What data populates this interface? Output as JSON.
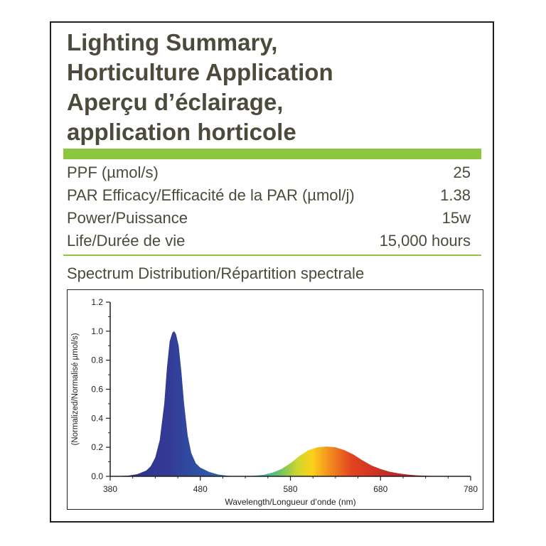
{
  "title": {
    "lines": [
      "Lighting Summary,",
      "Horticulture Application",
      "Aperçu d’éclairage,",
      "application horticole"
    ]
  },
  "colors": {
    "accent_green": "#8dc63f",
    "text": "#4c4a3b"
  },
  "specs": [
    {
      "label": "PPF (µmol/s)",
      "value": "25"
    },
    {
      "label": "PAR Efficacy/Efficacité de la PAR (µmol/j)",
      "value": "1.38"
    },
    {
      "label": "Power/Puissance",
      "value": "15w"
    },
    {
      "label": "Life/Durée de vie",
      "value": "15,000 hours"
    }
  ],
  "spectrum_title": "Spectrum Distribution/Répartition spectrale",
  "chart_data": {
    "type": "area",
    "title": "",
    "xlabel": "Wavelength/Longueur d’onde  (nm)",
    "ylabel": "(Normalized/Normalisé µmol/s)",
    "xlim": [
      380,
      780
    ],
    "ylim": [
      0,
      1.2
    ],
    "x_ticks": [
      380,
      480,
      580,
      680,
      780
    ],
    "x_tick_labels": [
      "380",
      "480",
      "580",
      "680",
      "780"
    ],
    "y_ticks": [
      0,
      0.2,
      0.4,
      0.6,
      0.8,
      1.0,
      1.2
    ],
    "y_tick_labels": [
      "0.0",
      "0.2",
      "0.4",
      "0.6",
      "0.8",
      "1.0",
      "1.2"
    ],
    "grid": false,
    "legend": "none",
    "series": [
      {
        "x": [
          380,
          400,
          410,
          420,
          425,
          430,
          435,
          440,
          443,
          446,
          449,
          451,
          453,
          456,
          459,
          462,
          466,
          470,
          475,
          480,
          490,
          500,
          510,
          520,
          530,
          540,
          550,
          560,
          570,
          580,
          590,
          600,
          610,
          620,
          630,
          640,
          650,
          660,
          670,
          680,
          690,
          700,
          710,
          720,
          730,
          740,
          750,
          780
        ],
        "y": [
          0.0,
          0.005,
          0.015,
          0.04,
          0.07,
          0.13,
          0.25,
          0.5,
          0.75,
          0.93,
          0.99,
          1.0,
          0.98,
          0.9,
          0.72,
          0.5,
          0.28,
          0.16,
          0.09,
          0.06,
          0.03,
          0.012,
          0.004,
          0.0,
          0.002,
          0.004,
          0.01,
          0.025,
          0.05,
          0.09,
          0.14,
          0.18,
          0.2,
          0.205,
          0.2,
          0.18,
          0.15,
          0.11,
          0.075,
          0.05,
          0.032,
          0.02,
          0.012,
          0.007,
          0.004,
          0.002,
          0.0,
          0.0
        ]
      }
    ]
  }
}
